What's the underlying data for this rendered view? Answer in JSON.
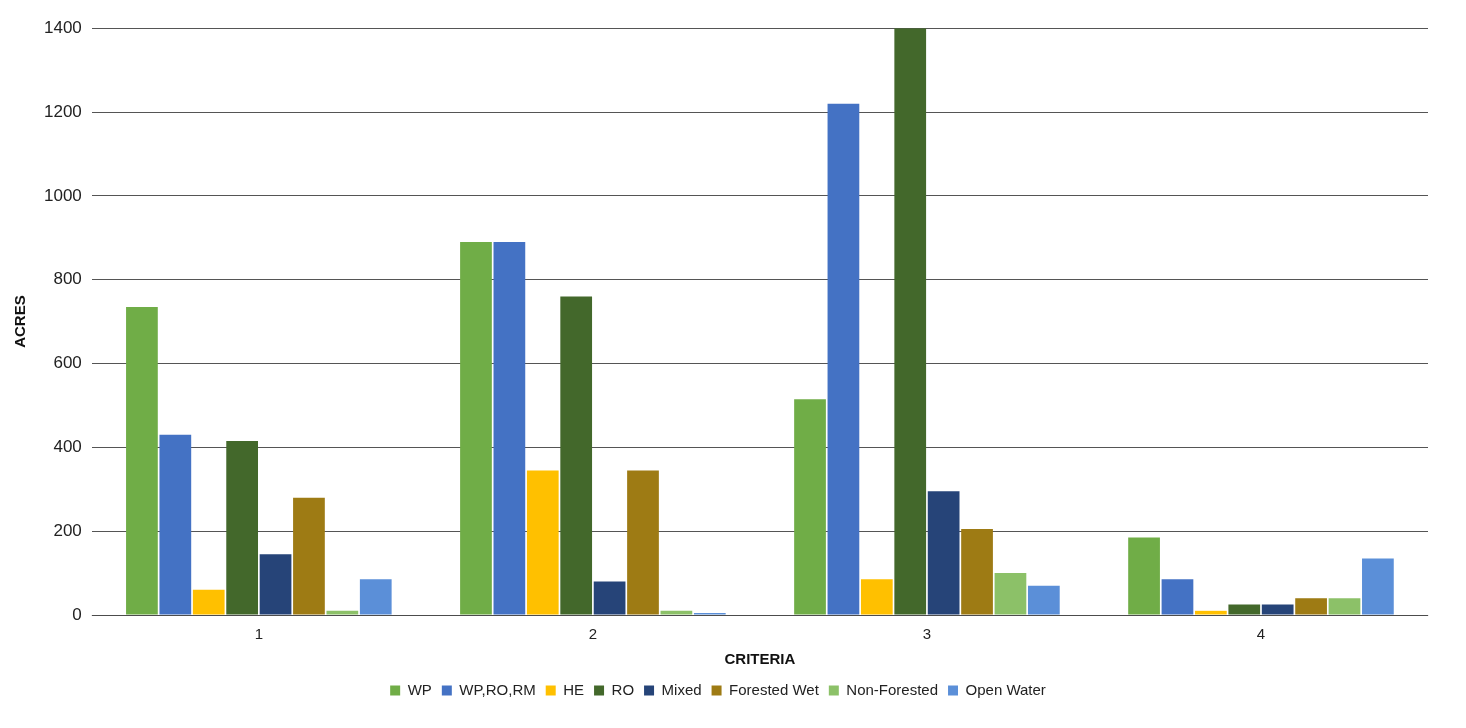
{
  "chart_data": {
    "type": "bar",
    "xlabel": "CRITERIA",
    "ylabel": "ACRES",
    "categories": [
      "1",
      "2",
      "3",
      "4"
    ],
    "series": [
      {
        "name": "WP",
        "color": "#70ad47",
        "values": [
          735,
          890,
          515,
          185
        ]
      },
      {
        "name": "WP,RO,RM",
        "color": "#4472c4",
        "values": [
          430,
          890,
          1220,
          85
        ]
      },
      {
        "name": "HE",
        "color": "#ffc000",
        "values": [
          60,
          345,
          85,
          10
        ]
      },
      {
        "name": "RO",
        "color": "#43682b",
        "values": [
          415,
          760,
          1400,
          25
        ]
      },
      {
        "name": "Mixed",
        "color": "#264478",
        "values": [
          145,
          80,
          295,
          25
        ]
      },
      {
        "name": "Forested Wet",
        "color": "#9e7b14",
        "values": [
          280,
          345,
          205,
          40
        ]
      },
      {
        "name": "Non-Forested",
        "color": "#8cc168",
        "values": [
          10,
          10,
          100,
          40
        ]
      },
      {
        "name": "Open Water",
        "color": "#5b8fd8",
        "values": [
          85,
          5,
          70,
          135
        ]
      }
    ],
    "ylim": [
      0,
      1400
    ],
    "yticks": [
      0,
      200,
      400,
      600,
      800,
      1000,
      1200,
      1400
    ],
    "grid": "y",
    "legend": "bottom"
  }
}
